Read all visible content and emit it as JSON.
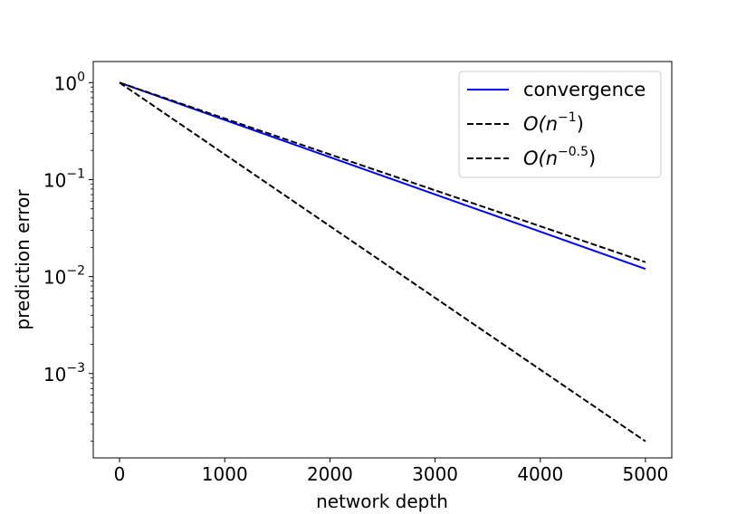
{
  "chart_data": {
    "type": "line",
    "title": "",
    "xlabel": "network depth",
    "ylabel": "prediction error",
    "xlim": [
      -250,
      5250
    ],
    "xticks": [
      0,
      1000,
      2000,
      3000,
      4000,
      5000
    ],
    "xtick_labels": [
      "0",
      "1000",
      "2000",
      "3000",
      "4000",
      "5000"
    ],
    "y_scale": "log",
    "ylim": [
      0.000135,
      1.65
    ],
    "yticks": [
      1,
      0.1,
      0.01,
      0.001
    ],
    "ytick_labels": [
      {
        "base": "10",
        "exp": "0"
      },
      {
        "base": "10",
        "exp": "−1"
      },
      {
        "base": "10",
        "exp": "−2"
      },
      {
        "base": "10",
        "exp": "−3"
      }
    ],
    "grid": false,
    "legend_position": "top-right",
    "series": [
      {
        "name": "convergence",
        "color": "#0000ff",
        "dash": "solid",
        "x": [
          0,
          5000
        ],
        "y": [
          1,
          0.012
        ]
      },
      {
        "name": "O(n^-1)",
        "legend": {
          "base": "O(n",
          "sup": "−1",
          "tail": ")"
        },
        "color": "#000000",
        "dash": "dashed",
        "x": [
          0,
          5000
        ],
        "y": [
          1,
          0.0002
        ]
      },
      {
        "name": "O(n^-0.5)",
        "legend": {
          "base": "O(n",
          "sup": "−0.5",
          "tail": ")"
        },
        "color": "#000000",
        "dash": "dashed",
        "x": [
          0,
          5000
        ],
        "y": [
          1,
          0.0141
        ]
      }
    ]
  }
}
